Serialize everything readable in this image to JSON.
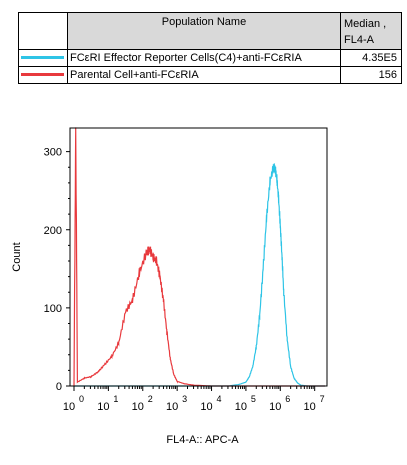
{
  "legend": {
    "header_name": "Population Name",
    "header_median_line1": "Median ,",
    "header_median_line2": "FL4-A",
    "rows": [
      {
        "name": "FCεRI Effector Reporter Cells(C4)+anti-FCεRIA",
        "median": "4.35E5",
        "color": "#2ec4e6"
      },
      {
        "name": "Parental Cell+anti-FCεRIA",
        "median": "156",
        "color": "#e8393d"
      }
    ]
  },
  "chart_data": {
    "type": "line",
    "xlabel": "FL4-A:: APC-A",
    "ylabel": "Count",
    "x_scale": "log",
    "xlim": [
      0,
      7.3
    ],
    "ylim": [
      0,
      320
    ],
    "x_tick_mantissa": "10",
    "x_tick_exponents": [
      "0",
      "1",
      "2",
      "3",
      "4",
      "5",
      "6",
      "7"
    ],
    "y_ticks": [
      0,
      100,
      200,
      300
    ],
    "series": [
      {
        "name": "FCεRI Effector Reporter Cells(C4)+anti-FCεRIA",
        "color": "#2ec4e6",
        "x": [
          0.0,
          4.5,
          4.8,
          5.0,
          5.1,
          5.2,
          5.3,
          5.4,
          5.5,
          5.6,
          5.7,
          5.8,
          5.85,
          5.9,
          5.95,
          6.0,
          6.05,
          6.1,
          6.2,
          6.3,
          6.4,
          6.5,
          6.6,
          6.8,
          7.3
        ],
        "y": [
          0,
          0,
          2,
          5,
          12,
          25,
          50,
          90,
          150,
          215,
          262,
          280,
          278,
          265,
          240,
          205,
          165,
          120,
          60,
          25,
          10,
          4,
          1,
          0,
          0
        ]
      },
      {
        "name": "Parental Cell+anti-FCεRIA",
        "color": "#e8393d",
        "x": [
          0.0,
          0.05,
          0.1,
          0.3,
          0.5,
          0.7,
          0.9,
          1.1,
          1.3,
          1.5,
          1.7,
          1.9,
          2.1,
          2.2,
          2.3,
          2.4,
          2.5,
          2.6,
          2.7,
          2.8,
          2.9,
          3.0,
          3.2,
          3.5,
          4.0,
          7.3
        ],
        "y": [
          0,
          330,
          5,
          10,
          12,
          18,
          28,
          38,
          55,
          95,
          110,
          145,
          170,
          175,
          165,
          160,
          140,
          110,
          70,
          35,
          15,
          6,
          3,
          1,
          0,
          0
        ]
      }
    ]
  }
}
